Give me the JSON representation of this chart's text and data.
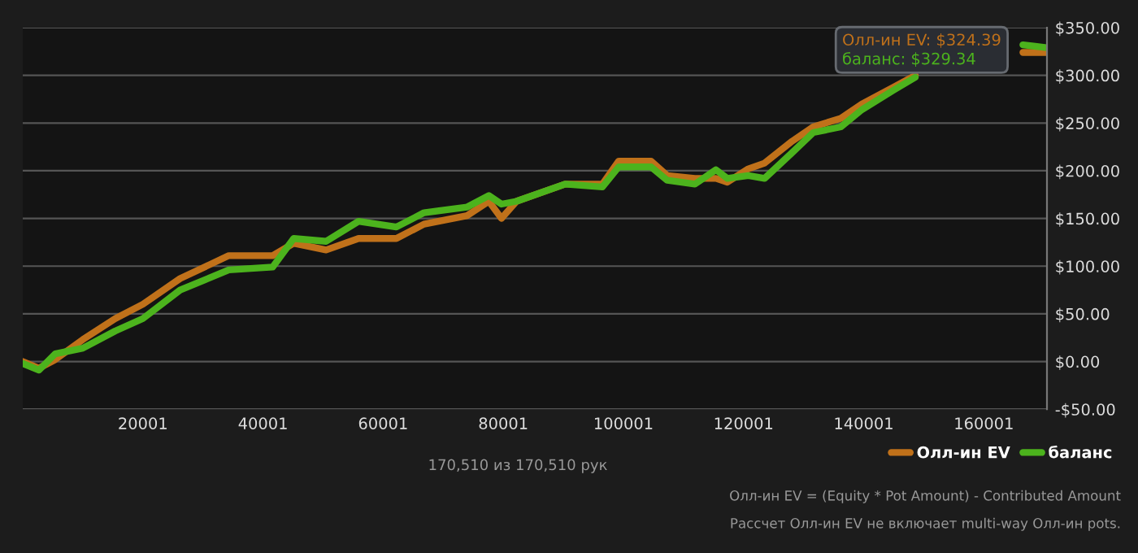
{
  "chart_data": {
    "type": "line",
    "x": [
      1,
      2700,
      5400,
      10000,
      15400,
      20000,
      26200,
      34300,
      41600,
      45100,
      50500,
      55900,
      62200,
      66800,
      74000,
      77600,
      79700,
      82200,
      90300,
      96500,
      99200,
      104600,
      107300,
      111900,
      115400,
      117300,
      120800,
      123500,
      128100,
      131600,
      136200,
      139700,
      145100,
      148600,
      152000,
      160000,
      166500,
      170510
    ],
    "series": [
      {
        "name": "Олл-ин EV",
        "color": "#c0711a",
        "values": [
          0,
          -7,
          2,
          23,
          45,
          60,
          87,
          111,
          111,
          124,
          117,
          129,
          129,
          144,
          153,
          168,
          150,
          168,
          186,
          186,
          210,
          210,
          195,
          192,
          192,
          188,
          202,
          208,
          231,
          246,
          255,
          270,
          288,
          300,
          null,
          null,
          324,
          324
        ]
      },
      {
        "name": "баланс",
        "color": "#4cb31d",
        "values": [
          -2,
          -9,
          8,
          14,
          32,
          45,
          75,
          96,
          99,
          129,
          126,
          147,
          141,
          156,
          162,
          174,
          165,
          168,
          186,
          183,
          204,
          204,
          190,
          186,
          201,
          192,
          195,
          192,
          219,
          240,
          246,
          264,
          285,
          298,
          null,
          null,
          332,
          329
        ]
      }
    ],
    "xlim": [
      1,
      170510
    ],
    "xticks": [
      20001,
      40001,
      60001,
      80001,
      100001,
      120001,
      140001,
      160001
    ],
    "ylim": [
      -50,
      350
    ],
    "yticks": [
      {
        "value": -50,
        "label": "-$50.00"
      },
      {
        "value": 0,
        "label": "$0.00"
      },
      {
        "value": 50,
        "label": "$50.00"
      },
      {
        "value": 100,
        "label": "$100.00"
      },
      {
        "value": 150,
        "label": "$150.00"
      },
      {
        "value": 200,
        "label": "$200.00"
      },
      {
        "value": 250,
        "label": "$250.00"
      },
      {
        "value": 300,
        "label": "$300.00"
      },
      {
        "value": 350,
        "label": "$350.00"
      }
    ],
    "grid": "y",
    "legend": "bottom right",
    "line_style": "solid",
    "annotations": [
      "Олл-ин EV: $324.39",
      "баланс: $329.34",
      "170,510 из 170,510 рук",
      "Олл-ин EV = (Equity * Pot Amount) - Contributed Amount",
      "Рассчет Олл-ин EV не включает multi-way Олл-ин pots."
    ]
  }
}
